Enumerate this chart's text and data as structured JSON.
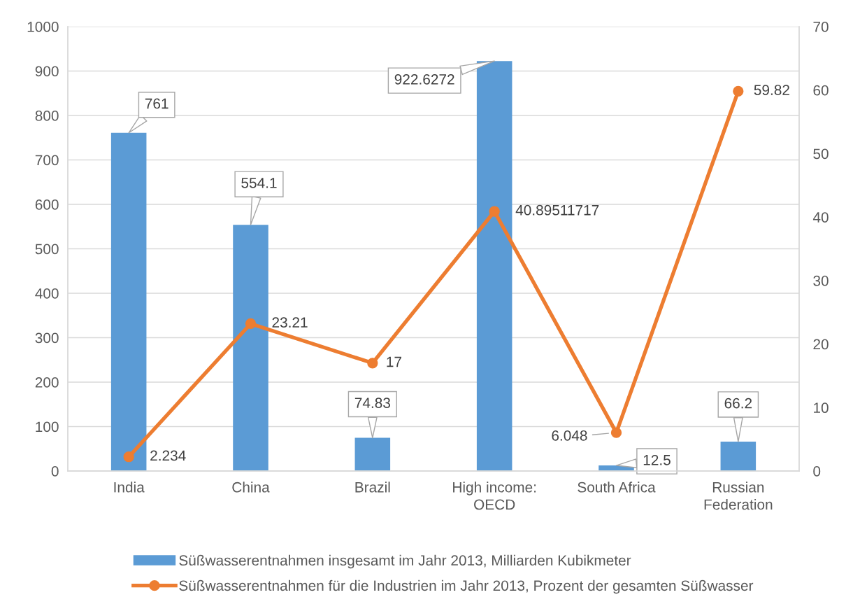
{
  "chart_data": {
    "type": "bar",
    "categories": [
      "India",
      "China",
      "Brazil",
      "High income: OECD",
      "South Africa",
      "Russian Federation"
    ],
    "series": [
      {
        "name": "Süßwasserentnahmen insgesamt im Jahr 2013, Milliarden Kubikmeter",
        "color": "#5b9bd5",
        "values": [
          761,
          554.1,
          74.83,
          922.6272,
          12.5,
          66.2
        ]
      },
      {
        "name": "Süßwasserentnahmen für die Industrien im Jahr 2013, Prozent der gesamten Süßwasser",
        "type": "line",
        "axis": "y2",
        "color": "#ed7d31",
        "values": [
          2.234,
          23.21,
          17,
          40.89511717,
          6.048,
          59.82
        ]
      }
    ],
    "ylim": [
      0,
      1000
    ],
    "yticks": [
      0,
      100,
      200,
      300,
      400,
      500,
      600,
      700,
      800,
      900,
      1000
    ],
    "y2lim": [
      0,
      70
    ],
    "y2ticks": [
      0,
      10,
      20,
      30,
      40,
      50,
      60,
      70
    ],
    "grid": "y",
    "legend": "bottom",
    "data_labels": true,
    "marker": "circle",
    "line_style": "solid"
  }
}
